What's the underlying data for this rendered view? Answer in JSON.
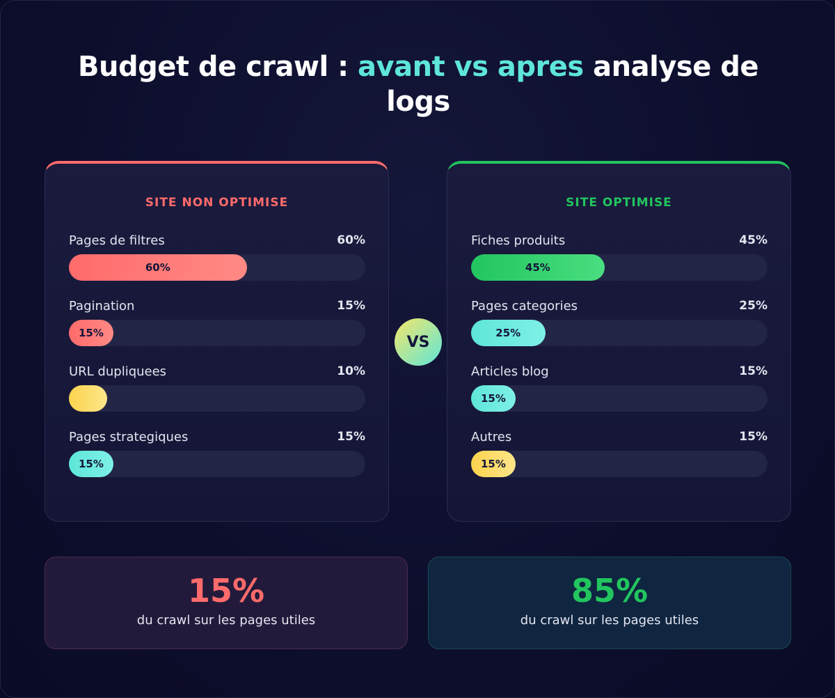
{
  "title": {
    "before": "Budget de crawl : ",
    "highlight": "avant vs apres",
    "after": " analyse de logs"
  },
  "colors": {
    "red": "#ff6b6b",
    "green": "#22c55e",
    "teal": "#5ee6d8",
    "yellow": "#fcd34d"
  },
  "left": {
    "title": "SITE NON OPTIMISE",
    "rows": [
      {
        "label": "Pages de filtres",
        "value": "60%",
        "pct": 60,
        "bar_label": "60%",
        "color": "red"
      },
      {
        "label": "Pagination",
        "value": "15%",
        "pct": 15,
        "bar_label": "15%",
        "color": "red"
      },
      {
        "label": "URL dupliquees",
        "value": "10%",
        "pct": 10,
        "bar_label": "",
        "color": "yellow"
      },
      {
        "label": "Pages strategiques",
        "value": "15%",
        "pct": 15,
        "bar_label": "15%",
        "color": "teal"
      }
    ]
  },
  "right": {
    "title": "SITE OPTIMISE",
    "rows": [
      {
        "label": "Fiches produits",
        "value": "45%",
        "pct": 45,
        "bar_label": "45%",
        "color": "green"
      },
      {
        "label": "Pages categories",
        "value": "25%",
        "pct": 25,
        "bar_label": "25%",
        "color": "teal"
      },
      {
        "label": "Articles blog",
        "value": "15%",
        "pct": 15,
        "bar_label": "15%",
        "color": "teal"
      },
      {
        "label": "Autres",
        "value": "15%",
        "pct": 15,
        "bar_label": "15%",
        "color": "yellow"
      }
    ]
  },
  "vs": "VS",
  "stats": [
    {
      "value": "15%",
      "text": "du crawl sur les pages utiles"
    },
    {
      "value": "85%",
      "text": "du crawl sur les pages utiles"
    }
  ]
}
